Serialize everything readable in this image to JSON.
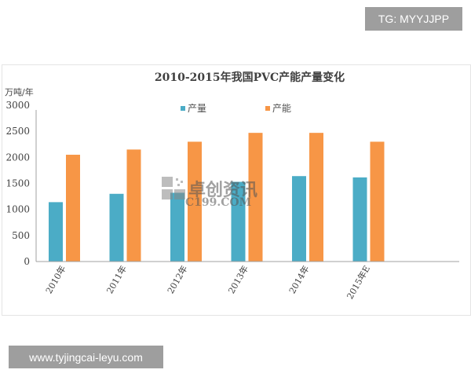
{
  "badges": {
    "tg": "TG: MYYJJPP",
    "site": "www.tyjingcai-leyu.com"
  },
  "watermark": {
    "name": "卓创资讯",
    "url": "C199.COM"
  },
  "chart_data": {
    "type": "bar",
    "title": "2010-2015年我国PVC产能产量变化",
    "ylabel": "万吨/年",
    "xlabel": "",
    "ylim": [
      0,
      3000
    ],
    "yticks": [
      0,
      500,
      1000,
      1500,
      2000,
      2500,
      3000
    ],
    "categories": [
      "2010年",
      "2011年",
      "2012年",
      "2013年",
      "2014年",
      "2015年E"
    ],
    "legend_position": "top-center",
    "grid": false,
    "series": [
      {
        "name": "产量",
        "color": "#4bacc6",
        "values": [
          1140,
          1300,
          1320,
          1530,
          1640,
          1615
        ]
      },
      {
        "name": "产能",
        "color": "#f79646",
        "values": [
          2050,
          2150,
          2300,
          2470,
          2470,
          2300
        ]
      }
    ]
  }
}
